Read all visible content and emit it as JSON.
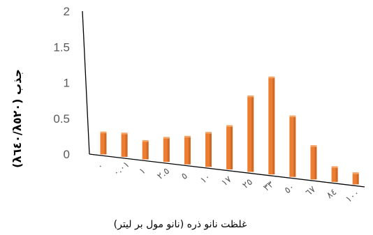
{
  "chart_data": {
    "type": "bar",
    "categories": [
      "٠",
      "٠.٠١",
      "١",
      "٢.٥",
      "٥",
      "١٠",
      "١٧",
      "٢٥",
      "٣٣",
      "٥٠",
      "٦٧",
      "٨٤",
      "١٠٠"
    ],
    "values": [
      0.3,
      0.32,
      0.25,
      0.33,
      0.38,
      0.47,
      0.6,
      1.05,
      1.35,
      0.84,
      0.46,
      0.2,
      0.15
    ],
    "yticks": [
      "0",
      "0.5",
      "1",
      "1.5",
      "2"
    ],
    "ylim": [
      0,
      2
    ],
    "ylabel": "جذب (λ٥٢٠/λ٦٤٠)",
    "xlabel": "غلظت نانو ذره (نانو مول بر لیتر)",
    "bar_color": "#ed7d31",
    "bar_dark": "#b85a1e",
    "bar_light": "#f4a66a",
    "axis_color": "#000000",
    "grid": false,
    "legend": "none"
  }
}
